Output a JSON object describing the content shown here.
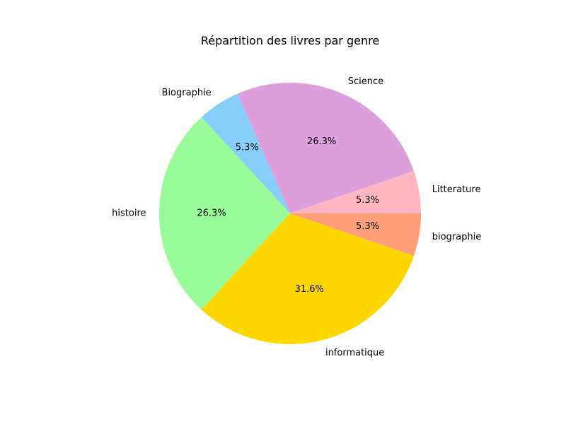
{
  "chart_data": {
    "type": "pie",
    "title": "Répartition des livres par genre",
    "categories": [
      "Litterature",
      "Science",
      "Biographie",
      "histoire",
      "informatique",
      "biographie"
    ],
    "values": [
      1,
      5,
      1,
      5,
      6,
      1
    ],
    "percent_labels": [
      "5.3%",
      "26.3%",
      "5.3%",
      "26.3%",
      "31.6%",
      "5.3%"
    ],
    "colors": [
      "#ffb6c1",
      "#dda0dd",
      "#87cefa",
      "#98fb98",
      "#ffd700",
      "#ffa07a"
    ],
    "start_angle_deg": 0,
    "direction": "counterclockwise",
    "legend": "none"
  }
}
